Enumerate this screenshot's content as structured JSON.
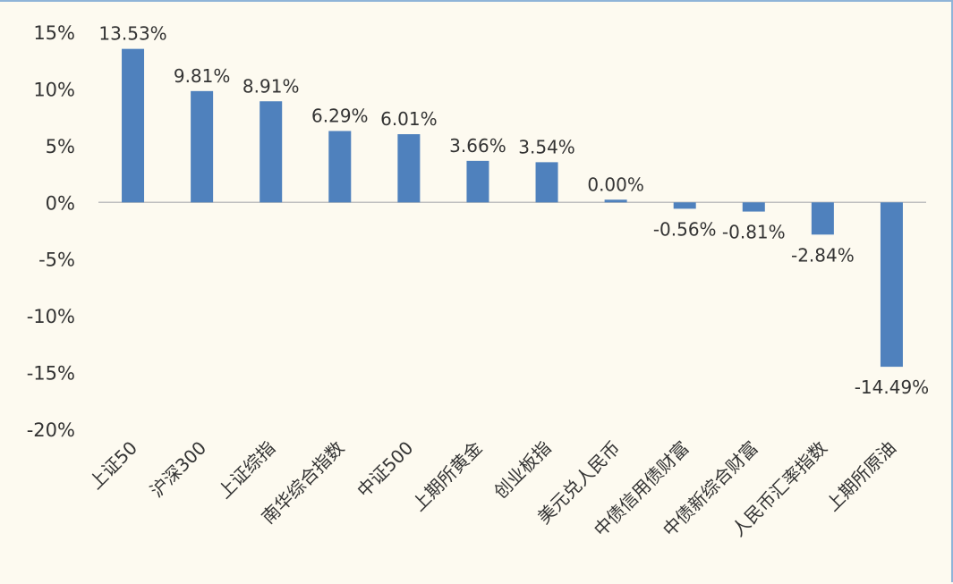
{
  "chart_data": {
    "type": "bar",
    "categories": [
      "上证50",
      "沪深300",
      "上证综指",
      "南华综合指数",
      "中证500",
      "上期所黄金",
      "创业板指",
      "美元兑人民币",
      "中债信用债财富",
      "中债新综合财富",
      "人民币汇率指数",
      "上期所原油"
    ],
    "values": [
      13.53,
      9.81,
      8.91,
      6.29,
      6.01,
      3.66,
      3.54,
      0.0,
      -0.56,
      -0.81,
      -2.84,
      -14.49
    ],
    "data_labels": [
      "13.53%",
      "9.81%",
      "8.91%",
      "6.29%",
      "6.01%",
      "3.66%",
      "3.54%",
      "0.00%",
      "-0.56%",
      "-0.81%",
      "-2.84%",
      "-14.49%"
    ],
    "ylim": [
      -20,
      15
    ],
    "yticks": [
      15,
      10,
      5,
      0,
      -5,
      -10,
      -15,
      -20
    ],
    "ytick_labels": [
      "15%",
      "10%",
      "5%",
      "0%",
      "-5%",
      "-10%",
      "-15%",
      "-20%"
    ],
    "bar_color": "#4f81bd",
    "grid": false,
    "legend": "none",
    "title": "",
    "xlabel": "",
    "ylabel": ""
  }
}
